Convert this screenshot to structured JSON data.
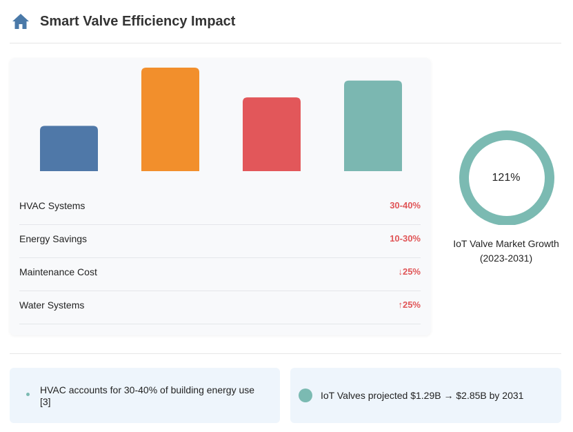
{
  "header": {
    "title": "Smart Valve Efficiency Impact",
    "icon": "home-icon"
  },
  "colors": {
    "accent": "#4a79a8",
    "value_red": "#e05557",
    "teal": "#7bbab2",
    "bar_colors": [
      "#4f78a8",
      "#f28f2c",
      "#e2575a",
      "#7bb7b1"
    ]
  },
  "chart_data": [
    {
      "type": "bar",
      "categories": [
        "HVAC Systems",
        "Energy Savings",
        "Maintenance Cost",
        "Water Systems"
      ],
      "values": [
        35,
        80,
        57,
        70
      ],
      "value_labels": [
        "30-40%",
        "10-30%",
        "↓25%",
        "↑25%"
      ],
      "ylim": [
        0,
        90
      ],
      "grid": false,
      "axes_visible": false,
      "legend": "none"
    },
    {
      "type": "pie",
      "variant": "donut",
      "center_label": "121%",
      "caption_line1": "IoT Valve Market Growth",
      "caption_line2": "(2023-2031)"
    }
  ],
  "rows": [
    {
      "label": "HVAC Systems",
      "value": "30-40%"
    },
    {
      "label": "Energy Savings",
      "value": "10-30%"
    },
    {
      "label": "Maintenance Cost",
      "value": "↓25%"
    },
    {
      "label": "Water Systems",
      "value": "↑25%"
    }
  ],
  "info_cards": [
    {
      "text": "HVAC accounts for 30-40% of building energy use [3]"
    },
    {
      "text": "IoT Valves projected $1.29B → $2.85B by 2031"
    }
  ]
}
